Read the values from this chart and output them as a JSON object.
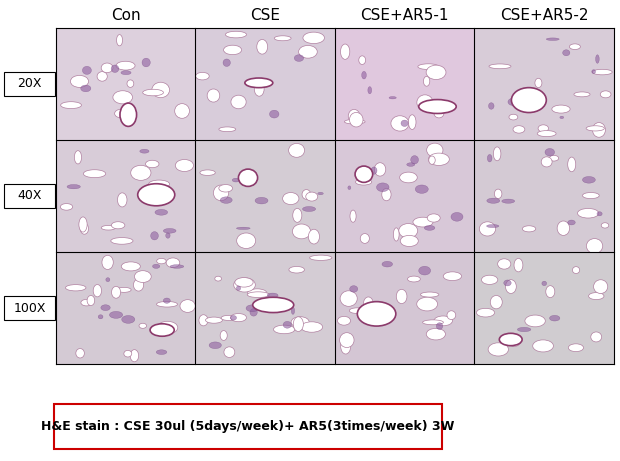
{
  "col_labels": [
    "Con",
    "CSE",
    "CSE+AR5-1",
    "CSE+AR5-2"
  ],
  "row_labels": [
    "20X",
    "40X",
    "100X"
  ],
  "caption": "H&E stain : CSE 30ul (5days/week)+ AR5(3times/week) 3W",
  "caption_box_color": "#cc0000",
  "background_color": "#ffffff",
  "grid_line_color": "#000000",
  "col_label_fontsize": 11,
  "row_label_fontsize": 9,
  "caption_fontsize": 9,
  "fig_width": 6.2,
  "fig_height": 4.61,
  "dpi": 100,
  "row_bg": [
    [
      "#ddd0dd",
      "#d8ccda",
      "#e0c8de",
      "#d8ccd8"
    ],
    [
      "#d8ccd8",
      "#d4ccd4",
      "#d8c8d8",
      "#d4cad4"
    ],
    [
      "#d4cad4",
      "#d4ccd4",
      "#d4c6d4",
      "#d0ccd0"
    ]
  ],
  "alveoli_edge": "#b080a0",
  "dark_patch_face": "#9060a0",
  "dark_patch_edge": "#704080",
  "vessel_edge": "#8b3a6b"
}
